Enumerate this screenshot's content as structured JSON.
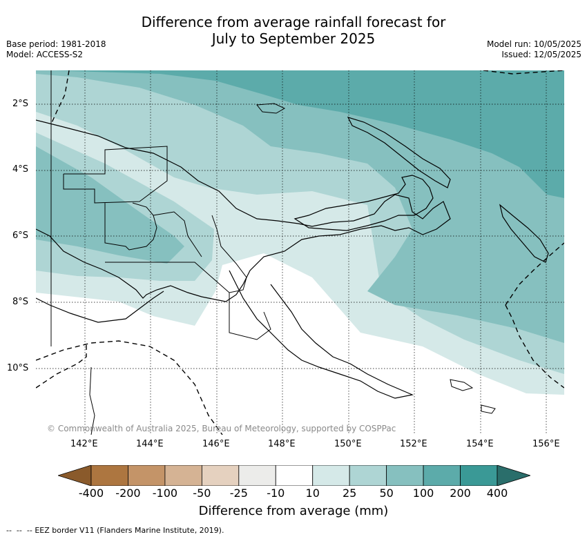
{
  "title": {
    "line1": "Difference from average rainfall forecast for",
    "line2": "July to September 2025"
  },
  "meta_left": {
    "base_period": "Base period: 1981-2018",
    "model": "Model: ACCESS-S2"
  },
  "meta_right": {
    "model_run": "Model run: 10/05/2025",
    "issued": "Issued: 12/05/2025"
  },
  "copyright": "© Commonwealth of Australia 2025, Bureau of Meteorology, supported by COSPPac",
  "lat_labels": [
    "2°S",
    "4°S",
    "6°S",
    "8°S",
    "10°S"
  ],
  "lon_labels": [
    "142°E",
    "144°E",
    "146°E",
    "148°E",
    "150°E",
    "152°E",
    "154°E",
    "156°E"
  ],
  "colorbar": {
    "label": "Difference from average (mm)",
    "ticks": [
      "-400",
      "-200",
      "-100",
      "-50",
      "-25",
      "-10",
      "10",
      "25",
      "50",
      "100",
      "200",
      "400"
    ],
    "colors": {
      "below_-400": "#8a5a2b",
      "-400_-200": "#ad7640",
      "-200_-100": "#c49468",
      "-100_-50": "#d5b394",
      "-50_-25": "#e5d1bf",
      "-25_-10": "#ececea",
      "-10_10": "#ffffff",
      "10_25": "#d5e9e8",
      "25_50": "#aed5d4",
      "50_100": "#86c0bf",
      "100_200": "#5cabaa",
      "200_400": "#3a9996",
      "above_400": "#2a6e6b"
    }
  },
  "legend_footnote": "EEZ border V11 (Flanders Marine Institute, 2019)."
}
